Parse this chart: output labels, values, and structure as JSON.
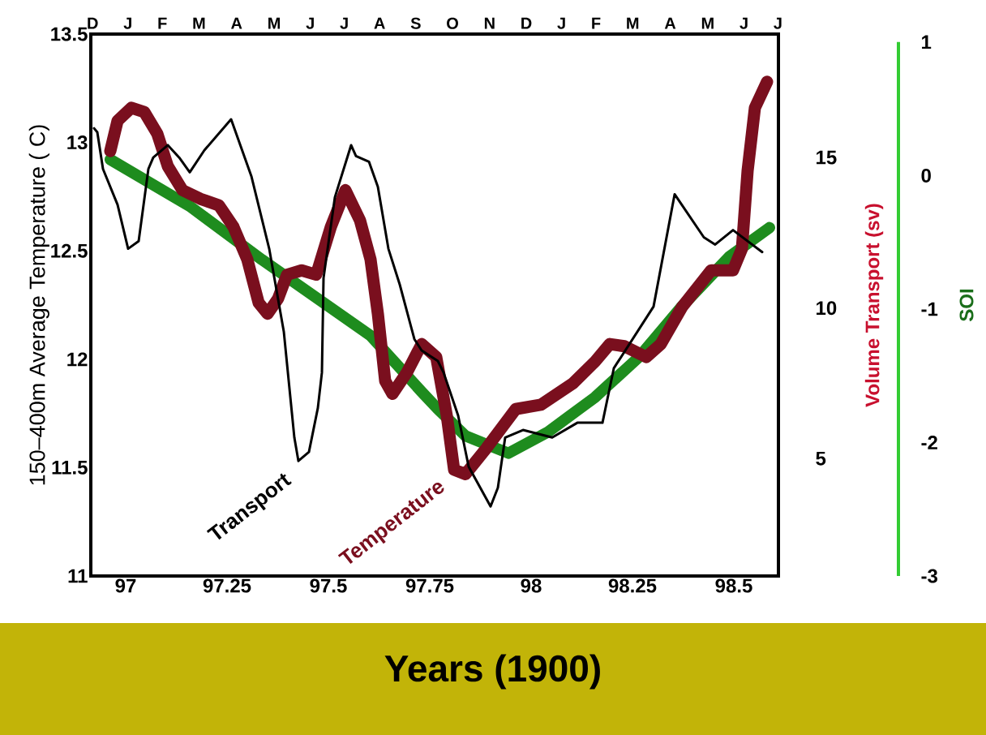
{
  "chart_data": {
    "type": "line",
    "xlabel": "Years (1900)",
    "ylabel": "150–400m Average Temperature ( C)",
    "y2label": "Volume Transport (sv)",
    "y3label": "SOI",
    "xlim": [
      96.914,
      98.61
    ],
    "xticks": [
      97,
      97.25,
      97.5,
      97.75,
      98,
      98.25,
      98.5
    ],
    "ylim": [
      11,
      13.5
    ],
    "yticks": [
      11,
      11.5,
      12,
      12.5,
      13,
      13.5
    ],
    "y2lim": [
      1.1,
      19.1
    ],
    "y2ticks": [
      5,
      10,
      15
    ],
    "y3lim": [
      -3,
      1.06
    ],
    "y3ticks": [
      1,
      0,
      -1,
      -2,
      -3
    ],
    "series": [
      {
        "color": "#1e8c1e",
        "axis": "y3",
        "x": [
          96.962,
          97.158,
          97.336,
          97.604,
          97.73,
          97.77,
          97.838,
          97.944,
          98.042,
          98.158,
          98.266,
          98.372,
          98.488,
          98.588
        ],
        "values": [
          0.12,
          -0.23,
          -0.63,
          -1.2,
          -1.62,
          -1.75,
          -1.95,
          -2.08,
          -1.92,
          -1.66,
          -1.36,
          -0.98,
          -0.61,
          -0.39
        ]
      },
      {
        "color": "#7a0f1e",
        "axis": "y",
        "x": [
          96.962,
          96.98,
          97.014,
          97.046,
          97.078,
          97.104,
          97.14,
          97.184,
          97.23,
          97.266,
          97.3,
          97.328,
          97.35,
          97.376,
          97.398,
          97.434,
          97.47,
          97.506,
          97.542,
          97.578,
          97.604,
          97.622,
          97.64,
          97.658,
          97.694,
          97.73,
          97.766,
          97.792,
          97.81,
          97.838,
          97.89,
          97.962,
          98.024,
          98.104,
          98.158,
          98.194,
          98.23,
          98.284,
          98.32,
          98.372,
          98.444,
          98.498,
          98.52,
          98.534,
          98.552,
          98.582
        ],
        "values": [
          12.96,
          13.1,
          13.16,
          13.14,
          13.04,
          12.89,
          12.78,
          12.74,
          12.71,
          12.61,
          12.46,
          12.26,
          12.21,
          12.28,
          12.39,
          12.41,
          12.39,
          12.61,
          12.78,
          12.64,
          12.46,
          12.21,
          11.9,
          11.84,
          11.94,
          12.07,
          12.01,
          11.74,
          11.49,
          11.47,
          11.59,
          11.77,
          11.79,
          11.89,
          11.99,
          12.07,
          12.06,
          12.01,
          12.07,
          12.24,
          12.41,
          12.41,
          12.51,
          12.87,
          13.16,
          13.28
        ]
      },
      {
        "color": "#000000",
        "axis": "y2",
        "x": [
          96.922,
          96.93,
          96.944,
          96.98,
          97.006,
          97.032,
          97.056,
          97.068,
          97.104,
          97.132,
          97.158,
          97.194,
          97.26,
          97.31,
          97.354,
          97.39,
          97.416,
          97.426,
          97.452,
          97.474,
          97.484,
          97.488,
          97.516,
          97.556,
          97.568,
          97.6,
          97.622,
          97.648,
          97.676,
          97.712,
          97.73,
          97.77,
          97.784,
          97.82,
          97.846,
          97.9,
          97.918,
          97.936,
          97.98,
          98.052,
          98.114,
          98.176,
          98.204,
          98.302,
          98.354,
          98.426,
          98.454,
          98.498,
          98.57
        ],
        "values": [
          15.97,
          15.84,
          14.62,
          13.43,
          11.97,
          12.22,
          14.62,
          15.0,
          15.41,
          15.0,
          14.51,
          15.24,
          16.27,
          14.38,
          11.97,
          9.22,
          5.7,
          4.92,
          5.22,
          6.68,
          7.86,
          11.0,
          13.68,
          15.41,
          15.05,
          14.86,
          14.03,
          11.97,
          10.78,
          8.97,
          8.59,
          8.24,
          7.86,
          6.43,
          4.73,
          3.41,
          4.03,
          5.7,
          5.95,
          5.7,
          6.19,
          6.19,
          8.0,
          10.05,
          13.78,
          12.35,
          12.11,
          12.59,
          11.86
        ]
      }
    ],
    "annotations": [
      {
        "text": "Transport",
        "x": 97.42,
        "y": 11.55
      },
      {
        "text": "Temperature",
        "x": 97.8,
        "y": 11.52
      },
      "D J F M A M J J A S O N D J F M A M J J"
    ]
  }
}
